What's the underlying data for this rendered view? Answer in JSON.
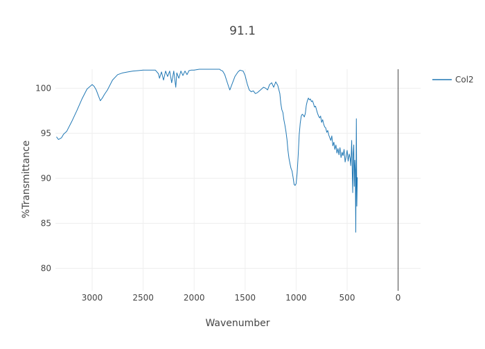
{
  "chart_data": {
    "type": "line",
    "title": "91.1",
    "xlabel": "Wavenumber",
    "ylabel": "%Transmittance",
    "x_reversed": true,
    "xlim": [
      3360,
      -220
    ],
    "ylim": [
      77.5,
      102.1
    ],
    "x_ticks": [
      3000,
      2500,
      2000,
      1500,
      1000,
      500,
      0
    ],
    "x_tick_labels": [
      "3000",
      "2500",
      "2000",
      "1500",
      "1000",
      "500",
      "0"
    ],
    "y_ticks": [
      80,
      85,
      90,
      95,
      100
    ],
    "y_tick_labels": [
      "80",
      "85",
      "90",
      "95",
      "100"
    ],
    "grid": true,
    "zero_line_x": 0,
    "legend": {
      "position": "top-right"
    },
    "series": [
      {
        "name": "Col2",
        "color": "#1f77b4",
        "x": [
          3350,
          3330,
          3300,
          3280,
          3250,
          3200,
          3150,
          3100,
          3050,
          3000,
          2980,
          2960,
          2940,
          2920,
          2900,
          2880,
          2850,
          2800,
          2750,
          2700,
          2650,
          2600,
          2550,
          2500,
          2450,
          2400,
          2380,
          2350,
          2340,
          2320,
          2300,
          2280,
          2260,
          2240,
          2220,
          2200,
          2180,
          2170,
          2150,
          2130,
          2110,
          2090,
          2070,
          2050,
          2030,
          2000,
          1950,
          1900,
          1850,
          1800,
          1750,
          1740,
          1720,
          1700,
          1680,
          1660,
          1650,
          1630,
          1600,
          1570,
          1550,
          1520,
          1500,
          1480,
          1460,
          1440,
          1420,
          1400,
          1380,
          1360,
          1340,
          1320,
          1300,
          1280,
          1260,
          1240,
          1220,
          1200,
          1180,
          1160,
          1150,
          1140,
          1130,
          1120,
          1110,
          1100,
          1090,
          1080,
          1070,
          1060,
          1050,
          1040,
          1030,
          1020,
          1010,
          1000,
          990,
          980,
          970,
          960,
          950,
          940,
          930,
          920,
          910,
          900,
          890,
          880,
          870,
          860,
          850,
          840,
          830,
          820,
          810,
          800,
          790,
          780,
          770,
          760,
          750,
          740,
          730,
          720,
          710,
          700,
          690,
          680,
          670,
          660,
          650,
          640,
          630,
          620,
          610,
          600,
          590,
          580,
          570,
          560,
          550,
          540,
          530,
          520,
          510,
          500,
          490,
          480,
          470,
          465,
          460,
          455,
          450,
          445,
          440,
          435,
          430,
          425,
          420,
          415,
          410,
          405,
          400
        ],
        "y": [
          94.6,
          94.3,
          94.5,
          94.9,
          95.2,
          96.3,
          97.5,
          98.8,
          99.9,
          100.4,
          100.2,
          99.8,
          99.2,
          98.6,
          98.9,
          99.3,
          99.8,
          100.9,
          101.5,
          101.7,
          101.8,
          101.9,
          101.95,
          102.0,
          102.0,
          102.0,
          102.0,
          101.6,
          101.1,
          101.8,
          100.9,
          101.9,
          101.3,
          101.9,
          100.6,
          101.9,
          100.1,
          101.7,
          101.1,
          101.9,
          101.4,
          101.9,
          101.5,
          101.95,
          102.0,
          102.0,
          102.1,
          102.1,
          102.1,
          102.1,
          102.1,
          102.0,
          101.9,
          101.5,
          100.8,
          100.1,
          99.8,
          100.4,
          101.3,
          101.8,
          102.0,
          101.9,
          101.4,
          100.5,
          99.8,
          99.6,
          99.7,
          99.4,
          99.5,
          99.7,
          99.9,
          100.1,
          100.0,
          99.8,
          100.4,
          100.6,
          100.1,
          100.7,
          100.3,
          99.4,
          98.3,
          97.6,
          97.3,
          96.5,
          95.9,
          95.2,
          94.3,
          93.1,
          92.2,
          91.6,
          91.1,
          90.8,
          90.1,
          89.3,
          89.2,
          89.4,
          90.6,
          92.6,
          94.8,
          96.1,
          96.9,
          97.1,
          97.0,
          96.8,
          97.2,
          98.1,
          98.6,
          98.9,
          98.7,
          98.8,
          98.5,
          98.6,
          98.3,
          97.9,
          98.0,
          97.6,
          97.2,
          96.9,
          96.7,
          96.9,
          96.2,
          96.5,
          96.0,
          95.7,
          95.6,
          95.1,
          95.3,
          94.8,
          94.5,
          94.2,
          94.7,
          93.6,
          94.0,
          93.2,
          93.7,
          92.8,
          93.3,
          92.6,
          93.4,
          92.3,
          92.9,
          92.5,
          93.2,
          91.8,
          92.4,
          93.1,
          91.9,
          92.7,
          92.2,
          91.4,
          92.6,
          94.2,
          90.7,
          88.4,
          92.8,
          93.7,
          89.1,
          92.0,
          90.9,
          84.0,
          96.6,
          86.9,
          90.1
        ]
      }
    ]
  }
}
